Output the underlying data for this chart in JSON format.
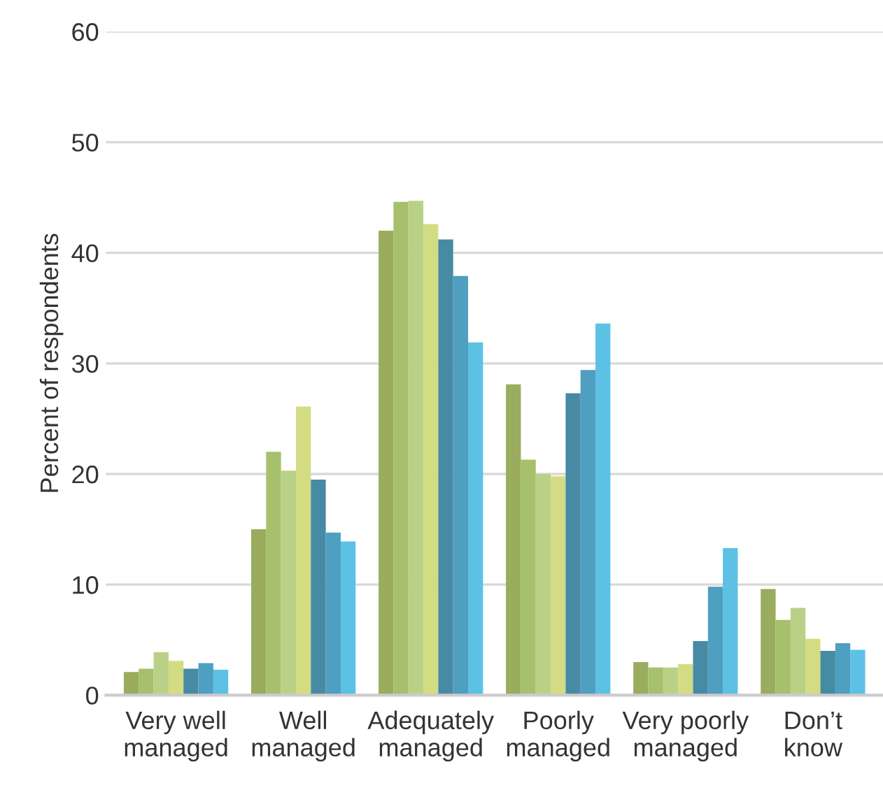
{
  "chart_data": {
    "type": "bar",
    "ylabel": "Percent of respondents",
    "categories": [
      "Very well\nmanaged",
      "Well\nmanaged",
      "Adequately\nmanaged",
      "Poorly\nmanaged",
      "Very poorly\nmanaged",
      "Don’t\nknow"
    ],
    "series": [
      {
        "color": "#9aac5e",
        "values": [
          2.1,
          15.0,
          42.0,
          28.1,
          3.0,
          9.6
        ]
      },
      {
        "color": "#a6c06c",
        "values": [
          2.4,
          22.0,
          44.6,
          21.3,
          2.5,
          6.8
        ]
      },
      {
        "color": "#b9d187",
        "values": [
          3.9,
          20.3,
          44.7,
          20.0,
          2.5,
          7.9
        ]
      },
      {
        "color": "#d3dc82",
        "values": [
          3.1,
          26.1,
          42.6,
          19.8,
          2.8,
          5.1
        ]
      },
      {
        "color": "#468aa3",
        "values": [
          2.4,
          19.5,
          41.2,
          27.3,
          4.9,
          4.0
        ]
      },
      {
        "color": "#4e9fc0",
        "values": [
          2.9,
          14.7,
          37.9,
          29.4,
          9.8,
          4.7
        ]
      },
      {
        "color": "#5cc1e4",
        "values": [
          2.3,
          13.9,
          31.9,
          33.6,
          13.3,
          4.1
        ]
      }
    ],
    "ylim": [
      0,
      60
    ],
    "yticks": [
      0,
      10,
      20,
      30,
      40,
      50,
      60
    ],
    "grid": "y",
    "legend": false
  }
}
